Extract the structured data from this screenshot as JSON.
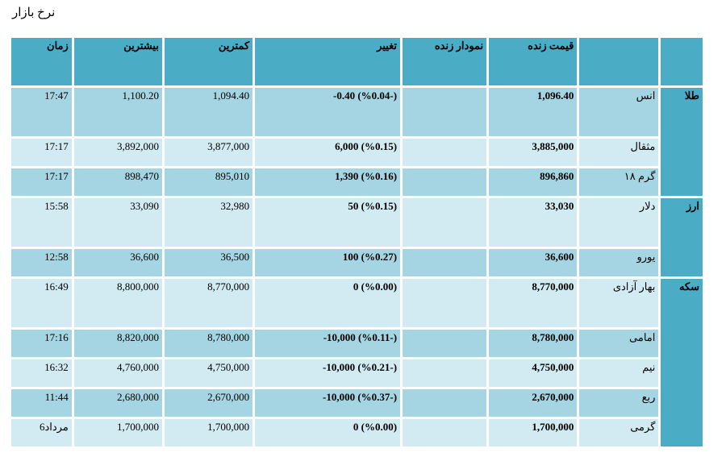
{
  "page_title": "نرخ بازار",
  "headers": {
    "time": "زمان",
    "high": "بیشترین",
    "low": "کمترین",
    "change": "تغییر",
    "live_chart": "نمودار زنده",
    "live_price": "قیمت زنده",
    "name": "",
    "category": ""
  },
  "groups": [
    {
      "category": "طلا",
      "rows": [
        {
          "name": "انس",
          "price": "1,096.40",
          "change": "-0.40 (%0.04-)",
          "low": "1,094.40",
          "high": "1,100.20",
          "time": "17:47"
        },
        {
          "name": "مثقال",
          "price": "3,885,000",
          "change": "6,000 (%0.15)",
          "low": "3,877,000",
          "high": "3,892,000",
          "time": "17:17"
        },
        {
          "name": "گرم ۱۸",
          "price": "896,860",
          "change": "1,390 (%0.16)",
          "low": "895,010",
          "high": "898,470",
          "time": "17:17"
        }
      ]
    },
    {
      "category": "ارز",
      "rows": [
        {
          "name": "دلار",
          "price": "33,030",
          "change": "50 (%0.15)",
          "low": "32,980",
          "high": "33,090",
          "time": "15:58"
        },
        {
          "name": "یورو",
          "price": "36,600",
          "change": "100 (%0.27)",
          "low": "36,500",
          "high": "36,600",
          "time": "12:58"
        }
      ]
    },
    {
      "category": "سکه",
      "rows": [
        {
          "name": "بهار آزادی",
          "price": "8,770,000",
          "change": "0 (%0.00)",
          "low": "8,770,000",
          "high": "8,800,000",
          "time": "16:49"
        },
        {
          "name": "امامی",
          "price": "8,780,000",
          "change": "-10,000 (%0.11-)",
          "low": "8,780,000",
          "high": "8,820,000",
          "time": "17:16"
        },
        {
          "name": "نیم",
          "price": "4,750,000",
          "change": "-10,000 (%0.21-)",
          "low": "4,750,000",
          "high": "4,760,000",
          "time": "16:32"
        },
        {
          "name": "ربع",
          "price": "2,670,000",
          "change": "-10,000 (%0.37-)",
          "low": "2,670,000",
          "high": "2,680,000",
          "time": "11:44"
        },
        {
          "name": "گرمی",
          "price": "1,700,000",
          "change": "0 (%0.00)",
          "low": "1,700,000",
          "high": "1,700,000",
          "time": "6مرداد"
        }
      ]
    }
  ]
}
